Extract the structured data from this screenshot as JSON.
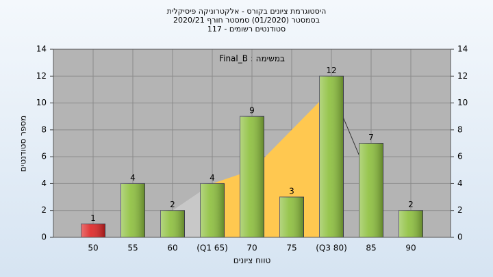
{
  "chart_data": {
    "type": "bar",
    "title": [
      "היסטוגרמת ציונים בקורס - אלקטרוניקה פיסיקלית",
      "בסמסטר (01/2020) סמסטר חורף 2020/21",
      "סטודנטים רשומים - 117"
    ],
    "annotation": "במשימה : Final_B",
    "x_label": "טווח ציונים",
    "y_label": "מספר סטודנטים",
    "categories": [
      "50",
      "55",
      "60",
      "(Q1 65)",
      "70",
      "75",
      "(Q3 80)",
      "85",
      "90"
    ],
    "values": [
      1,
      4,
      2,
      4,
      9,
      3,
      12,
      7,
      2
    ],
    "colors": [
      "#dd2222",
      "#8cbf3c",
      "#8cbf3c",
      "#8cbf3c",
      "#8cbf3c",
      "#8cbf3c",
      "#8cbf3c",
      "#8cbf3c",
      "#8cbf3c"
    ],
    "overlay": {
      "values": [
        null,
        null,
        2,
        4,
        5,
        8,
        11,
        4,
        null
      ],
      "color": "#ffc850"
    },
    "ylim": [
      0,
      14
    ],
    "yticks": [
      0,
      2,
      4,
      6,
      8,
      10,
      12,
      14
    ],
    "y2lim": [
      0,
      14
    ],
    "y2ticks": [
      0,
      2,
      4,
      6,
      8,
      10,
      12,
      14
    ],
    "grid": true
  }
}
